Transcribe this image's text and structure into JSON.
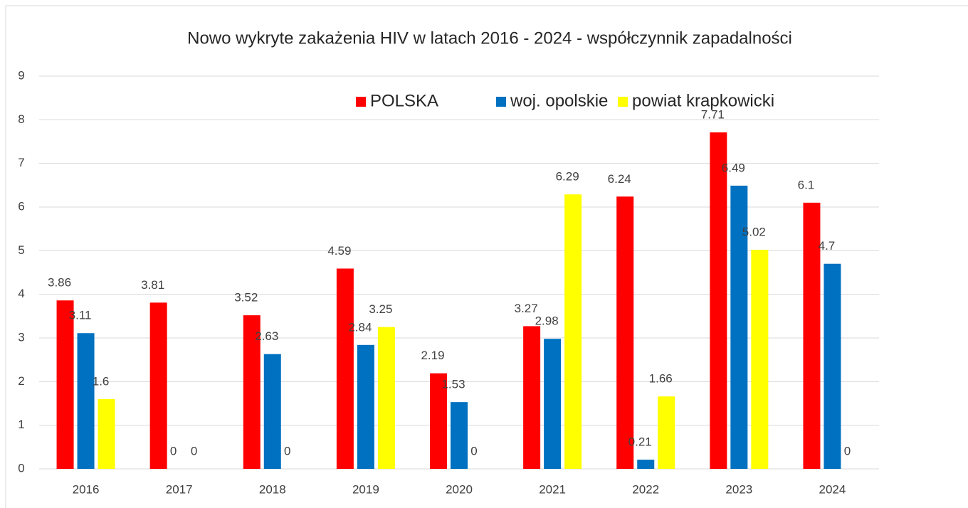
{
  "chart_data": {
    "type": "bar",
    "title": "Nowo wykryte zakażenia HIV w latach 2016 - 2024 - współczynnik zapadalności",
    "categories": [
      "2016",
      "2017",
      "2018",
      "2019",
      "2020",
      "2021",
      "2022",
      "2023",
      "2024"
    ],
    "series": [
      {
        "name": "POLSKA",
        "color": "#ff0000",
        "values": [
          3.86,
          3.81,
          3.52,
          4.59,
          2.19,
          3.27,
          6.24,
          7.71,
          6.1
        ]
      },
      {
        "name": "woj. opolskie",
        "color": "#0070c0",
        "values": [
          3.11,
          0,
          2.63,
          2.84,
          1.53,
          2.98,
          0.21,
          6.49,
          4.7
        ]
      },
      {
        "name": "powiat krapkowicki",
        "color": "#ffff00",
        "values": [
          1.6,
          0,
          0,
          3.25,
          0,
          6.29,
          1.66,
          5.02,
          0
        ]
      }
    ],
    "ylim": [
      0,
      9
    ],
    "yticks": [
      0,
      1,
      2,
      3,
      4,
      5,
      6,
      7,
      8,
      9
    ],
    "grid": true,
    "legend": "top"
  }
}
